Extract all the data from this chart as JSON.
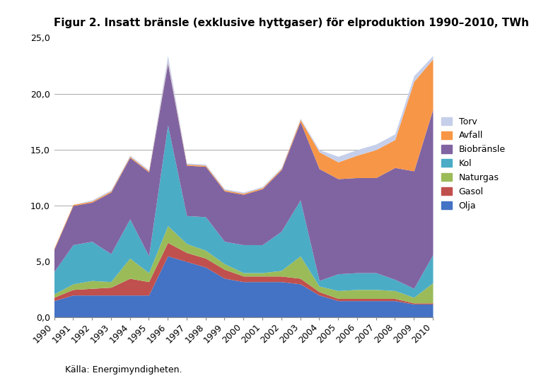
{
  "title": "Figur 2. Insatt bränsle (exklusive hyttgaser) för elproduktion 1990–2010, TWh",
  "caption": "Källa: Energimyndigheten.",
  "years": [
    1990,
    1991,
    1992,
    1993,
    1994,
    1995,
    1996,
    1997,
    1998,
    1999,
    2000,
    2001,
    2002,
    2003,
    2004,
    2005,
    2006,
    2007,
    2008,
    2009,
    2010
  ],
  "series": [
    {
      "label": "Olja",
      "color": "#4472C4",
      "values": [
        1.5,
        2.0,
        2.0,
        2.0,
        2.0,
        2.0,
        5.5,
        5.0,
        4.5,
        3.5,
        3.2,
        3.2,
        3.2,
        3.0,
        2.0,
        1.5,
        1.5,
        1.5,
        1.5,
        1.2,
        1.2
      ]
    },
    {
      "label": "Gasol",
      "color": "#C0504D",
      "values": [
        0.3,
        0.5,
        0.6,
        0.7,
        1.5,
        1.2,
        1.2,
        0.8,
        0.8,
        0.8,
        0.5,
        0.5,
        0.5,
        0.5,
        0.3,
        0.2,
        0.2,
        0.2,
        0.2,
        0.1,
        0.1
      ]
    },
    {
      "label": "Naturgas",
      "color": "#9BBB59",
      "values": [
        0.3,
        0.5,
        0.7,
        0.5,
        1.8,
        0.8,
        1.5,
        0.8,
        0.7,
        0.5,
        0.3,
        0.3,
        0.5,
        2.0,
        0.5,
        0.7,
        0.8,
        0.8,
        0.7,
        0.5,
        1.8
      ]
    },
    {
      "label": "Kol",
      "color": "#4BACC6",
      "values": [
        2.0,
        3.5,
        3.5,
        2.5,
        3.5,
        1.5,
        9.0,
        2.5,
        3.0,
        2.0,
        2.5,
        2.5,
        3.5,
        5.0,
        0.5,
        1.5,
        1.5,
        1.5,
        1.0,
        0.8,
        2.5
      ]
    },
    {
      "label": "Biobränsle",
      "color": "#8064A2",
      "values": [
        2.0,
        3.5,
        3.5,
        5.5,
        5.5,
        7.5,
        5.5,
        4.5,
        4.5,
        4.5,
        4.5,
        5.0,
        5.5,
        7.0,
        10.0,
        8.5,
        8.5,
        8.5,
        10.0,
        10.5,
        13.0
      ]
    },
    {
      "label": "Avfall",
      "color": "#F79646",
      "values": [
        0.1,
        0.1,
        0.1,
        0.1,
        0.1,
        0.1,
        0.1,
        0.1,
        0.1,
        0.1,
        0.1,
        0.1,
        0.1,
        0.2,
        1.5,
        1.5,
        2.0,
        2.5,
        2.5,
        8.0,
        4.5
      ]
    },
    {
      "label": "Torv",
      "color": "#C6CFEA",
      "values": [
        0.0,
        0.0,
        0.1,
        0.1,
        0.1,
        0.1,
        0.6,
        0.1,
        0.1,
        0.1,
        0.1,
        0.1,
        0.1,
        0.1,
        0.2,
        0.5,
        0.5,
        0.5,
        0.5,
        0.5,
        0.3
      ]
    }
  ],
  "ylim": [
    0,
    25
  ],
  "ytick_labels": [
    "0,0",
    "5,0",
    "10,0",
    "15,0",
    "20,0",
    "25,0"
  ],
  "legend_order": [
    "Torv",
    "Avfall",
    "Biobränsle",
    "Kol",
    "Naturgas",
    "Gasol",
    "Olja"
  ],
  "background_color": "#FFFFFF",
  "grid_color": "#AAAAAA",
  "title_fontsize": 11,
  "caption_fontsize": 9
}
